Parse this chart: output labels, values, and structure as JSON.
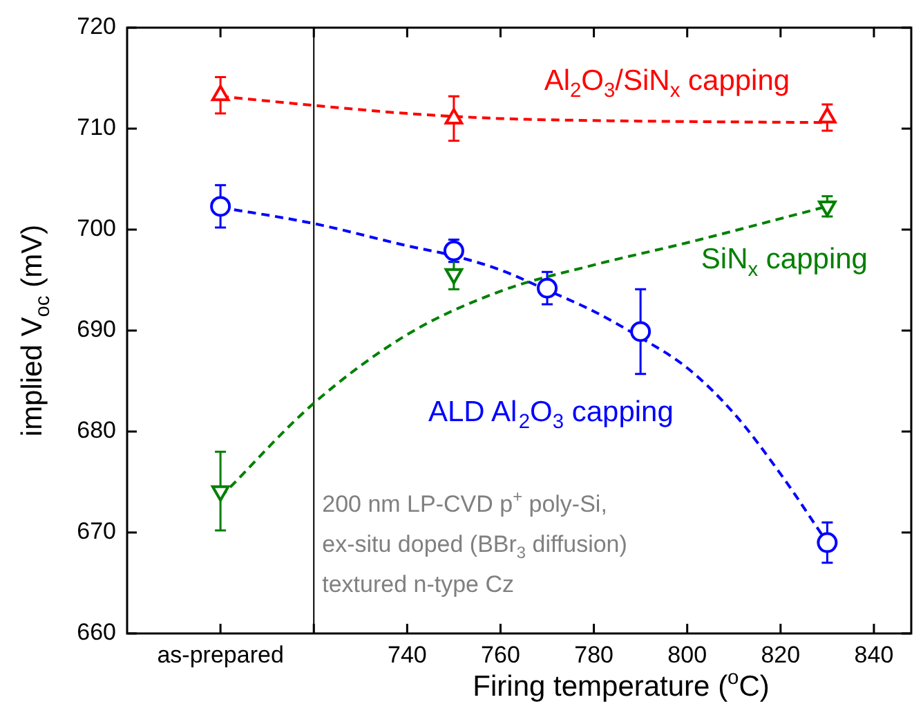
{
  "chart_data": {
    "type": "scatter",
    "xlabel": "Firing temperature ($^{o}$C)",
    "ylabel": "implied V$_{oc}$ (mV)",
    "xlim": [
      680,
      848
    ],
    "xticks": [
      {
        "value": 700,
        "label": "as-prepared"
      },
      {
        "value": 720,
        "label": null
      },
      740,
      760,
      780,
      800,
      820,
      840
    ],
    "ylim": [
      660,
      720
    ],
    "yticks": [
      660,
      670,
      680,
      690,
      700,
      710,
      720
    ],
    "grid": false,
    "legend": false,
    "ref_lines": [
      {
        "axis": "x",
        "value": 720,
        "color": "#000000"
      }
    ],
    "annotations": [
      "200 nm LP-CVD p$^{+}$ poly-Si,",
      "ex-situ doped (BBr$_{3}$ diffusion)",
      "textured n-type Cz"
    ],
    "series": [
      {
        "name": "Al$_{2}$O$_{3}$/SiN$_{x}$ capping",
        "color": "#ff0000",
        "marker": "triangle",
        "x": [
          700,
          750,
          830
        ],
        "values": [
          713.3,
          711.0,
          711.1
        ],
        "errors": [
          1.8,
          2.2,
          1.3
        ]
      },
      {
        "name": "ALD Al$_{2}$O$_{3}$ capping",
        "type": "scatter",
        "color": "#0000ff",
        "marker": "circle",
        "x": [
          700,
          750,
          770,
          790,
          830
        ],
        "values": [
          702.3,
          697.9,
          694.2,
          689.9,
          669.0
        ],
        "errors": [
          2.1,
          1.1,
          1.6,
          4.2,
          2.0
        ]
      },
      {
        "name": "SiN$_{x}$ capping",
        "type": "scatter",
        "color": "#008000",
        "marker": "triangle-down",
        "x": [
          700,
          750,
          830
        ],
        "values": [
          674.1,
          695.6,
          702.3
        ],
        "errors": [
          3.9,
          1.5,
          1.0
        ]
      },
      {
        "type": "line",
        "color": "#ff0000",
        "marker": "none",
        "line_style": "dashed",
        "x": [
          700,
          720,
          740,
          760,
          780,
          800,
          830
        ],
        "values": [
          713.2,
          712.3,
          711.5,
          711.0,
          710.8,
          710.7,
          710.6
        ]
      },
      {
        "type": "line",
        "color": "#0000ff",
        "marker": "none",
        "line_style": "dashed",
        "x": [
          700,
          720,
          740,
          750,
          760,
          770,
          780,
          790,
          800,
          810,
          820,
          830
        ],
        "values": [
          702.2,
          700.6,
          698.4,
          697.4,
          696.0,
          694.0,
          691.9,
          689.3,
          686.3,
          681.8,
          675.8,
          669.0
        ]
      },
      {
        "type": "line",
        "color": "#008000",
        "marker": "none",
        "line_style": "dashed",
        "x": [
          700,
          720,
          740,
          760,
          780,
          800,
          830
        ],
        "values": [
          673.5,
          682.8,
          689.6,
          693.9,
          696.5,
          698.7,
          702.3
        ]
      }
    ]
  }
}
